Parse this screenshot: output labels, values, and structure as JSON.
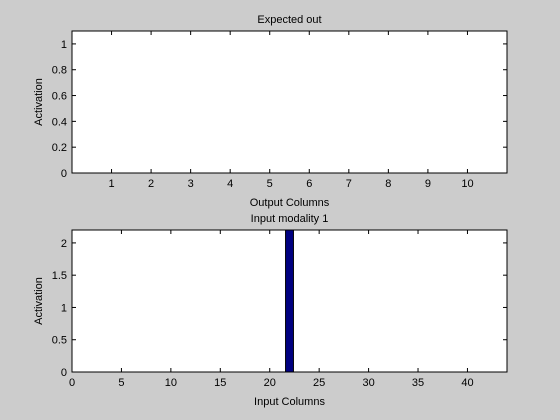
{
  "figure": {
    "background": "#cccccc"
  },
  "chart_data": [
    {
      "type": "bar",
      "title": "Expected out",
      "xlabel": "Output Columns",
      "ylabel": "Activation",
      "xlim": [
        0,
        11
      ],
      "ylim": [
        0,
        1.1
      ],
      "xticks": [
        1,
        2,
        3,
        4,
        5,
        6,
        7,
        8,
        9,
        10
      ],
      "yticks": [
        0,
        0.2,
        0.4,
        0.6,
        0.8,
        1
      ],
      "ytick_labels": [
        "0",
        "0.2",
        "0.4",
        "0.6",
        "0.8",
        "1"
      ],
      "x": [
        1,
        2,
        3,
        4,
        5,
        6,
        7,
        8,
        9,
        10
      ],
      "values": [
        0,
        0,
        0,
        0,
        0,
        0,
        0,
        0,
        0,
        0
      ],
      "bar_color": "#000080",
      "grid": false
    },
    {
      "type": "bar",
      "title": "Input modality 1",
      "xlabel": "Input Columns",
      "ylabel": "Activation",
      "xlim": [
        0,
        44
      ],
      "ylim": [
        0,
        2.2
      ],
      "xticks": [
        0,
        5,
        10,
        15,
        20,
        25,
        30,
        35,
        40
      ],
      "yticks": [
        0,
        0.5,
        1,
        1.5,
        2
      ],
      "ytick_labels": [
        "0",
        "0.5",
        "1",
        "1.5",
        "2"
      ],
      "x": [
        22
      ],
      "values": [
        2.2
      ],
      "bar_width": 0.8,
      "bar_color": "#000080",
      "grid": false
    }
  ]
}
